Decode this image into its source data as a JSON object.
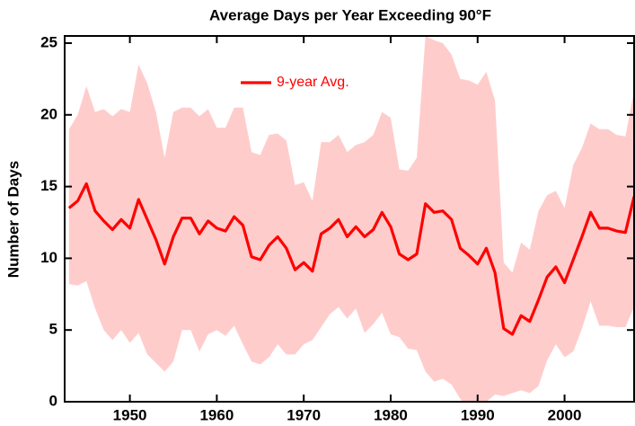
{
  "chart_data": {
    "type": "line",
    "title": "Average Days per Year Exceeding 90°F",
    "ylabel": "Number of Days",
    "x": [
      1943,
      1944,
      1945,
      1946,
      1947,
      1948,
      1949,
      1950,
      1951,
      1952,
      1953,
      1954,
      1955,
      1956,
      1957,
      1958,
      1959,
      1960,
      1961,
      1962,
      1963,
      1964,
      1965,
      1966,
      1967,
      1968,
      1969,
      1970,
      1971,
      1972,
      1973,
      1974,
      1975,
      1976,
      1977,
      1978,
      1979,
      1980,
      1981,
      1982,
      1983,
      1984,
      1985,
      1986,
      1987,
      1988,
      1989,
      1990,
      1991,
      1992,
      1993,
      1994,
      1995,
      1996,
      1997,
      1998,
      1999,
      2000,
      2001,
      2002,
      2003,
      2004,
      2005,
      2006,
      2007,
      2008
    ],
    "series": [
      {
        "name": "9-year Avg.",
        "color": "#ff0000",
        "values": [
          13.5,
          14.0,
          15.2,
          13.3,
          12.6,
          12.0,
          12.7,
          12.1,
          14.1,
          12.7,
          11.3,
          9.6,
          11.5,
          12.8,
          12.8,
          11.7,
          12.6,
          12.1,
          11.9,
          12.9,
          12.3,
          10.1,
          9.9,
          10.9,
          11.5,
          10.7,
          9.2,
          9.7,
          9.1,
          11.7,
          12.1,
          12.7,
          11.5,
          12.2,
          11.5,
          12.0,
          13.2,
          12.2,
          10.3,
          9.9,
          10.3,
          13.8,
          13.2,
          13.3,
          12.7,
          10.7,
          10.2,
          9.6,
          10.7,
          9.0,
          5.1,
          4.7,
          6.0,
          5.6,
          7.1,
          8.7,
          9.4,
          8.3,
          9.9,
          11.5,
          13.2,
          12.1,
          12.1,
          11.9,
          11.8,
          14.3
        ]
      }
    ],
    "band": {
      "color": "#ffcccc",
      "upper": [
        19.0,
        20.0,
        22.0,
        20.2,
        20.4,
        19.9,
        20.4,
        20.2,
        23.5,
        22.2,
        20.2,
        17.0,
        20.2,
        20.5,
        20.5,
        19.9,
        20.4,
        19.1,
        19.1,
        20.5,
        20.5,
        17.4,
        17.2,
        18.6,
        18.7,
        18.2,
        15.1,
        15.3,
        14.0,
        18.1,
        18.1,
        18.6,
        17.4,
        17.9,
        18.1,
        18.6,
        20.2,
        19.8,
        16.2,
        16.1,
        17.0,
        25.5,
        25.2,
        25.0,
        24.2,
        22.5,
        22.4,
        22.1,
        23.0,
        21.0,
        9.7,
        9.0,
        11.1,
        10.6,
        13.3,
        14.4,
        14.7,
        13.5,
        16.5,
        17.7,
        19.4,
        19.0,
        19.0,
        18.6,
        18.5,
        21.7
      ],
      "lower": [
        8.2,
        8.1,
        8.4,
        6.5,
        5.0,
        4.3,
        5.0,
        4.1,
        4.8,
        3.3,
        2.7,
        2.1,
        2.8,
        5.0,
        5.0,
        3.5,
        4.7,
        5.0,
        4.6,
        5.3,
        4.0,
        2.8,
        2.6,
        3.1,
        4.0,
        3.3,
        3.3,
        4.0,
        4.3,
        5.2,
        6.1,
        6.6,
        5.8,
        6.5,
        4.8,
        5.4,
        6.2,
        4.7,
        4.5,
        3.7,
        3.6,
        2.1,
        1.4,
        1.6,
        1.2,
        0.2,
        -0.5,
        -0.5,
        0.0,
        0.5,
        0.4,
        0.6,
        0.8,
        0.6,
        1.1,
        2.9,
        4.0,
        3.1,
        3.5,
        5.1,
        7.0,
        5.3,
        5.3,
        5.2,
        5.2,
        6.6
      ]
    },
    "xlim": [
      1942.5,
      2008
    ],
    "ylim": [
      0,
      25.5
    ],
    "xticks": [
      1950,
      1960,
      1970,
      1980,
      1990,
      2000
    ],
    "yticks": [
      0,
      5,
      10,
      15,
      20,
      25
    ],
    "legend": "upper left"
  }
}
